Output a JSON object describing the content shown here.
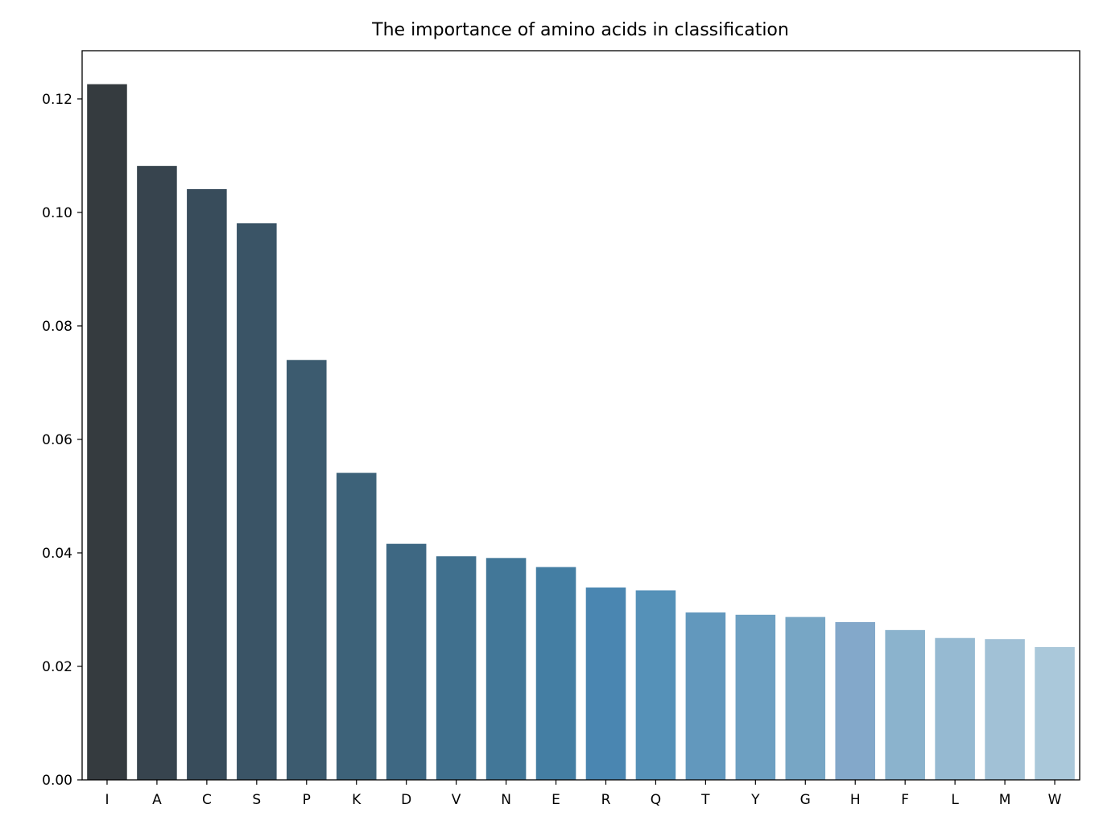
{
  "chart_data": {
    "type": "bar",
    "title": "The importance of amino acids in classification",
    "xlabel": "",
    "ylabel": "",
    "categories": [
      "I",
      "A",
      "C",
      "S",
      "P",
      "K",
      "D",
      "V",
      "N",
      "E",
      "R",
      "Q",
      "T",
      "Y",
      "G",
      "H",
      "F",
      "L",
      "M",
      "W"
    ],
    "values": [
      0.1226,
      0.1082,
      0.1041,
      0.0981,
      0.074,
      0.0541,
      0.0416,
      0.0394,
      0.0391,
      0.0375,
      0.0339,
      0.0334,
      0.0295,
      0.0291,
      0.0287,
      0.0278,
      0.0264,
      0.025,
      0.0248,
      0.0234
    ],
    "colors": [
      "#353b3f",
      "#37444e",
      "#384c5b",
      "#3a5466",
      "#3c5b6f",
      "#3d6279",
      "#3e6883",
      "#40708e",
      "#427798",
      "#447ea3",
      "#4a86b1",
      "#5591b8",
      "#6298bd",
      "#6da0c2",
      "#77a6c5",
      "#83a8ca",
      "#8bb3cd",
      "#96bad2",
      "#a1c1d6",
      "#aac8da"
    ],
    "ylim": [
      0,
      0.1285
    ],
    "yticks": [
      0.0,
      0.02,
      0.04,
      0.06,
      0.08,
      0.1,
      0.12
    ],
    "ytick_labels": [
      "0.00",
      "0.02",
      "0.04",
      "0.06",
      "0.08",
      "0.10",
      "0.12"
    ],
    "grid": false,
    "legend": "none"
  }
}
